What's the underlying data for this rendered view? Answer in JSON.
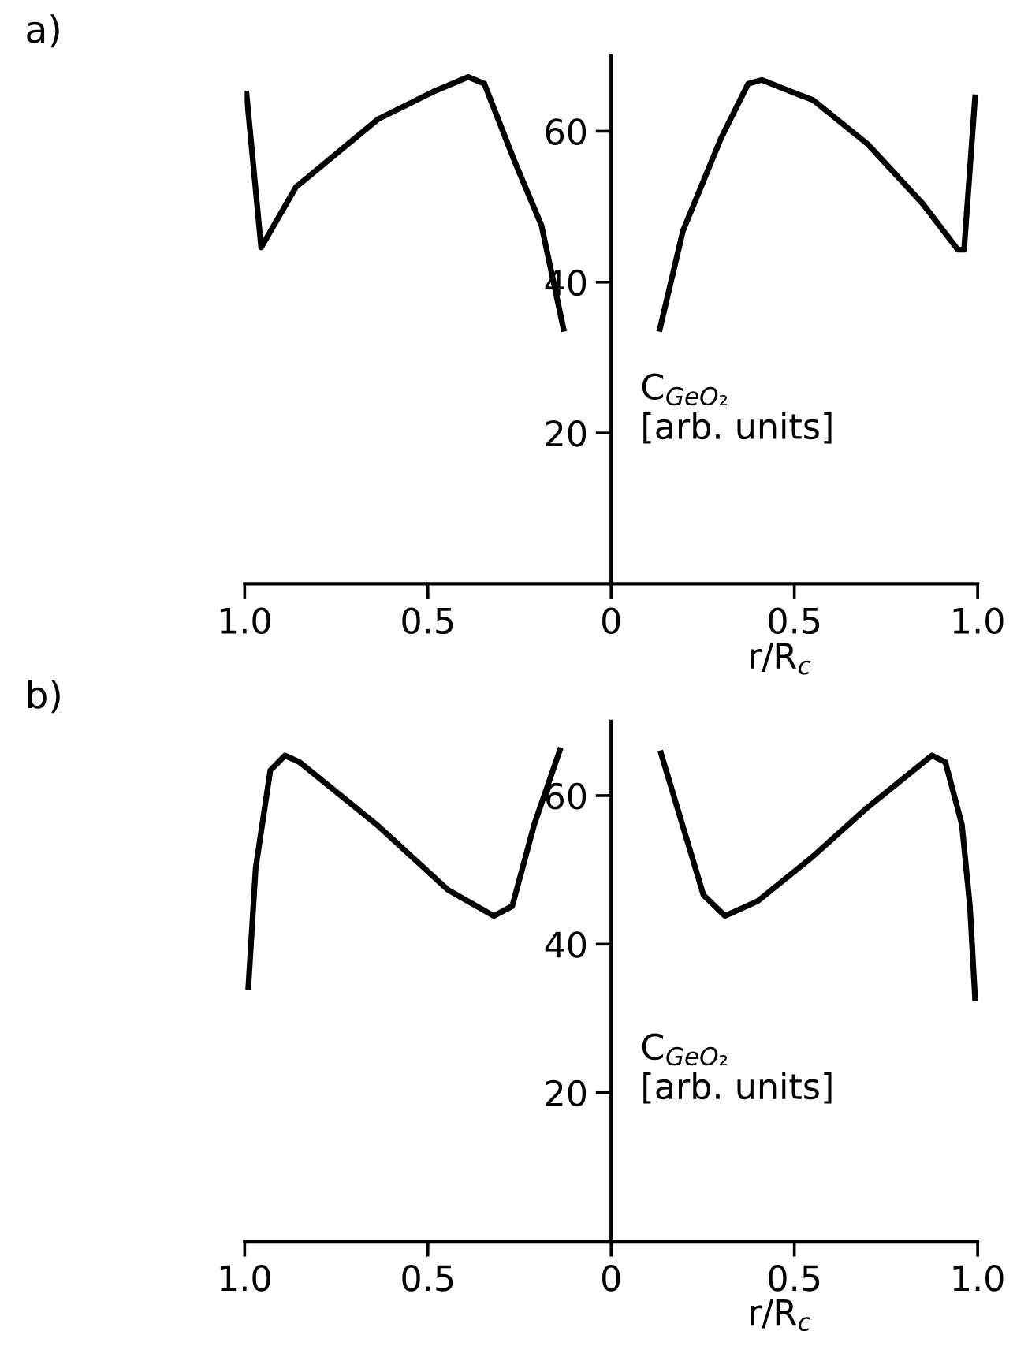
{
  "chart_data": [
    {
      "type": "line",
      "title": "a)",
      "xlabel": "r/R$_{c}$",
      "ylabel": "C$_{GeO₂}$\n[arb. units]",
      "xlim": [
        -1,
        1
      ],
      "ylim": [
        0,
        70
      ],
      "xticks": [
        {
          "value": -1,
          "label": "1.0"
        },
        {
          "value": -0.5,
          "label": "0.5"
        },
        0,
        0.5,
        {
          "value": 1,
          "label": "1.0"
        }
      ],
      "yticks": [
        20,
        40,
        60
      ],
      "grid": false,
      "legend": false,
      "line_style": "solid",
      "marker": "none",
      "series": [
        {
          "color": "#000000",
          "x": [
            -0.995,
            -0.955,
            -0.86,
            -0.636,
            -0.487,
            -0.39,
            -0.346,
            -0.265,
            -0.19,
            -0.13
          ],
          "values": [
            65,
            44.6,
            52.6,
            61.6,
            65.2,
            67.2,
            66.3,
            56.2,
            47.5,
            33.8
          ]
        },
        {
          "color": "#000000",
          "x": [
            0.133,
            0.196,
            0.3,
            0.374,
            0.411,
            0.552,
            0.7,
            0.85,
            0.946,
            0.963,
            0.993
          ],
          "values": [
            33.8,
            46.8,
            59.1,
            66.3,
            66.8,
            64.1,
            58.3,
            50.4,
            44.3,
            44.3,
            64.5
          ]
        }
      ]
    },
    {
      "type": "line",
      "title": "b)",
      "xlabel": "r/R$_{c}$",
      "ylabel": "C$_{GeO₂}$\n[arb. units]",
      "xlim": [
        -1,
        1
      ],
      "ylim": [
        0,
        70
      ],
      "xticks": [
        {
          "value": -1,
          "label": "1.0"
        },
        {
          "value": -0.5,
          "label": "0.5"
        },
        0,
        0.5,
        {
          "value": 1,
          "label": "1.0"
        }
      ],
      "yticks": [
        20,
        40,
        60
      ],
      "grid": false,
      "legend": false,
      "line_style": "solid",
      "marker": "none",
      "series": [
        {
          "color": "#000000",
          "x": [
            -0.99,
            -0.97,
            -0.93,
            -0.89,
            -0.85,
            -0.64,
            -0.445,
            -0.32,
            -0.27,
            -0.21,
            -0.14
          ],
          "values": [
            34.2,
            50.2,
            63.4,
            65.4,
            64.5,
            56.1,
            47.3,
            43.8,
            45.1,
            56.1,
            66.1
          ]
        },
        {
          "color": "#000000",
          "x": [
            0.136,
            0.252,
            0.311,
            0.4,
            0.548,
            0.697,
            0.875,
            0.912,
            0.957,
            0.979,
            0.993
          ],
          "values": [
            65.7,
            46.6,
            43.8,
            45.8,
            51.7,
            58.3,
            65.4,
            64.5,
            56.1,
            45.1,
            32.7
          ]
        }
      ]
    }
  ]
}
